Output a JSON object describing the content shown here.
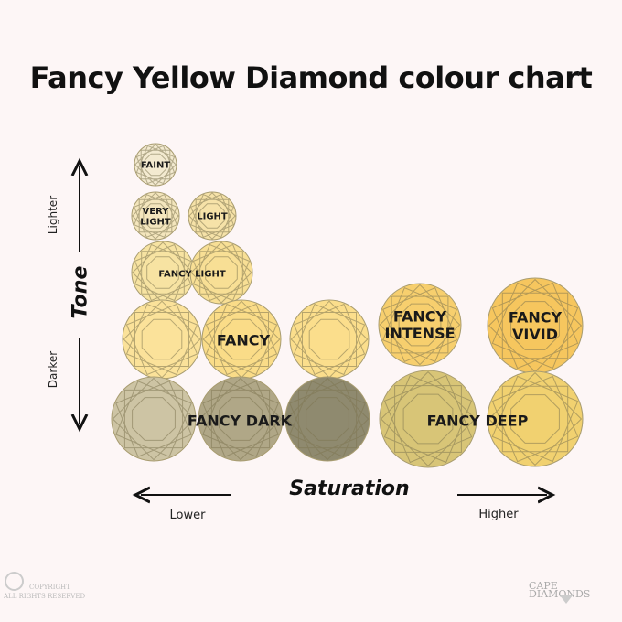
{
  "title": "Fancy Yellow Diamond colour chart",
  "tone_axis": {
    "label": "Tone",
    "top": "Lighter",
    "bottom": "Darker"
  },
  "saturation_axis": {
    "label": "Saturation",
    "left": "Lower",
    "right": "Higher"
  },
  "grades": [
    {
      "label": "FAINT",
      "colors": [
        "#f3ead0"
      ]
    },
    {
      "label": "VERY LIGHT",
      "colors": [
        "#f4e6bd"
      ]
    },
    {
      "label": "LIGHT",
      "colors": [
        "#f6e2a8"
      ]
    },
    {
      "label": "FANCY LIGHT",
      "colors": [
        "#f7e3a2",
        "#f8df95"
      ]
    },
    {
      "label": "FANCY",
      "colors": [
        "#fbe29a",
        "#fadc88",
        "#fbde8c"
      ]
    },
    {
      "label": "FANCY INTENSE",
      "colors": [
        "#f7cf6e"
      ]
    },
    {
      "label": "FANCY VIVID",
      "colors": [
        "#f6c65e"
      ]
    },
    {
      "label": "FANCY DARK",
      "colors": [
        "#cdc4a4",
        "#b0a787",
        "#8f8a6f"
      ]
    },
    {
      "label": "FANCY DEEP",
      "colors": [
        "#d8c577",
        "#f1d170"
      ]
    }
  ],
  "footer": {
    "copyright_line1": "COPYRIGHT",
    "copyright_line2": "ALL RIGHTS RESERVED",
    "brand": "CAPE DIAMONDS"
  }
}
